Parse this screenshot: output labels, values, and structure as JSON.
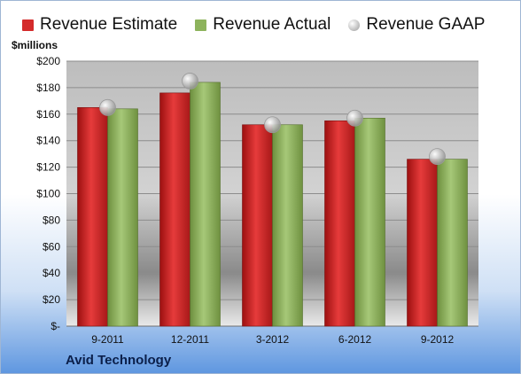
{
  "chart_data": {
    "type": "bar",
    "ylabel": "$millions",
    "categories": [
      "9-2011",
      "12-2011",
      "3-2012",
      "6-2012",
      "9-2012"
    ],
    "series": [
      {
        "name": "Revenue Estimate",
        "kind": "bar",
        "color": "#d42b2b",
        "values": [
          165,
          176,
          152,
          155,
          126
        ]
      },
      {
        "name": "Revenue Actual",
        "kind": "bar",
        "color": "#8db35c",
        "values": [
          164,
          184,
          152,
          157,
          126
        ]
      },
      {
        "name": "Revenue GAAP",
        "kind": "marker",
        "color": "#b8b8b8",
        "values": [
          165,
          185,
          152,
          157,
          128
        ]
      }
    ],
    "yticks": [
      "$-",
      "$20",
      "$40",
      "$60",
      "$80",
      "$100",
      "$120",
      "$140",
      "$160",
      "$180",
      "$200"
    ],
    "ylim": [
      0,
      200
    ],
    "grid": true,
    "legend_position": "top"
  },
  "company": "Avid Technology"
}
